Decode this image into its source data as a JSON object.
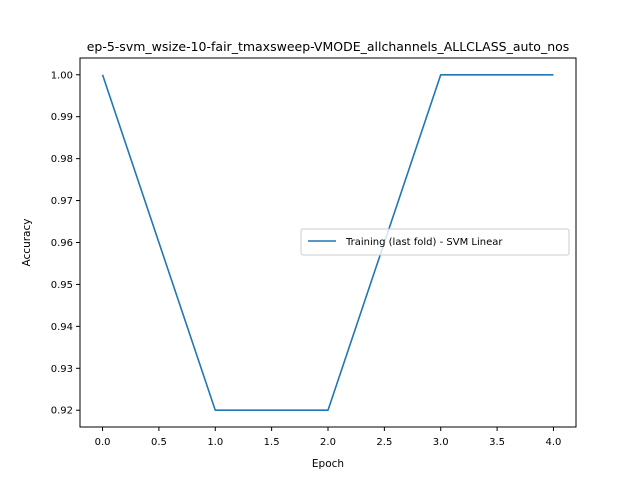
{
  "chart_data": {
    "type": "line",
    "title": "ep-5-svm_wsize-10-fair_tmaxsweep-VMODE_allchannels_ALLCLASS_auto_nos",
    "xlabel": "Epoch",
    "ylabel": "Accuracy",
    "xlim": [
      -0.2,
      4.2
    ],
    "ylim": [
      0.916,
      1.004
    ],
    "xticks": [
      0.0,
      0.5,
      1.0,
      1.5,
      2.0,
      2.5,
      3.0,
      3.5,
      4.0
    ],
    "xtick_labels": [
      "0.0",
      "0.5",
      "1.0",
      "1.5",
      "2.0",
      "2.5",
      "3.0",
      "3.5",
      "4.0"
    ],
    "yticks": [
      0.92,
      0.93,
      0.94,
      0.95,
      0.96,
      0.97,
      0.98,
      0.99,
      1.0
    ],
    "ytick_labels": [
      "0.92",
      "0.93",
      "0.94",
      "0.95",
      "0.96",
      "0.97",
      "0.98",
      "0.99",
      "1.00"
    ],
    "grid": false,
    "legend_position": "center-right",
    "series": [
      {
        "name": "Training (last fold) - SVM Linear",
        "color": "#1f77b4",
        "x": [
          0,
          1,
          2,
          3,
          4
        ],
        "y": [
          1.0,
          0.92,
          0.92,
          1.0,
          1.0
        ]
      }
    ]
  }
}
